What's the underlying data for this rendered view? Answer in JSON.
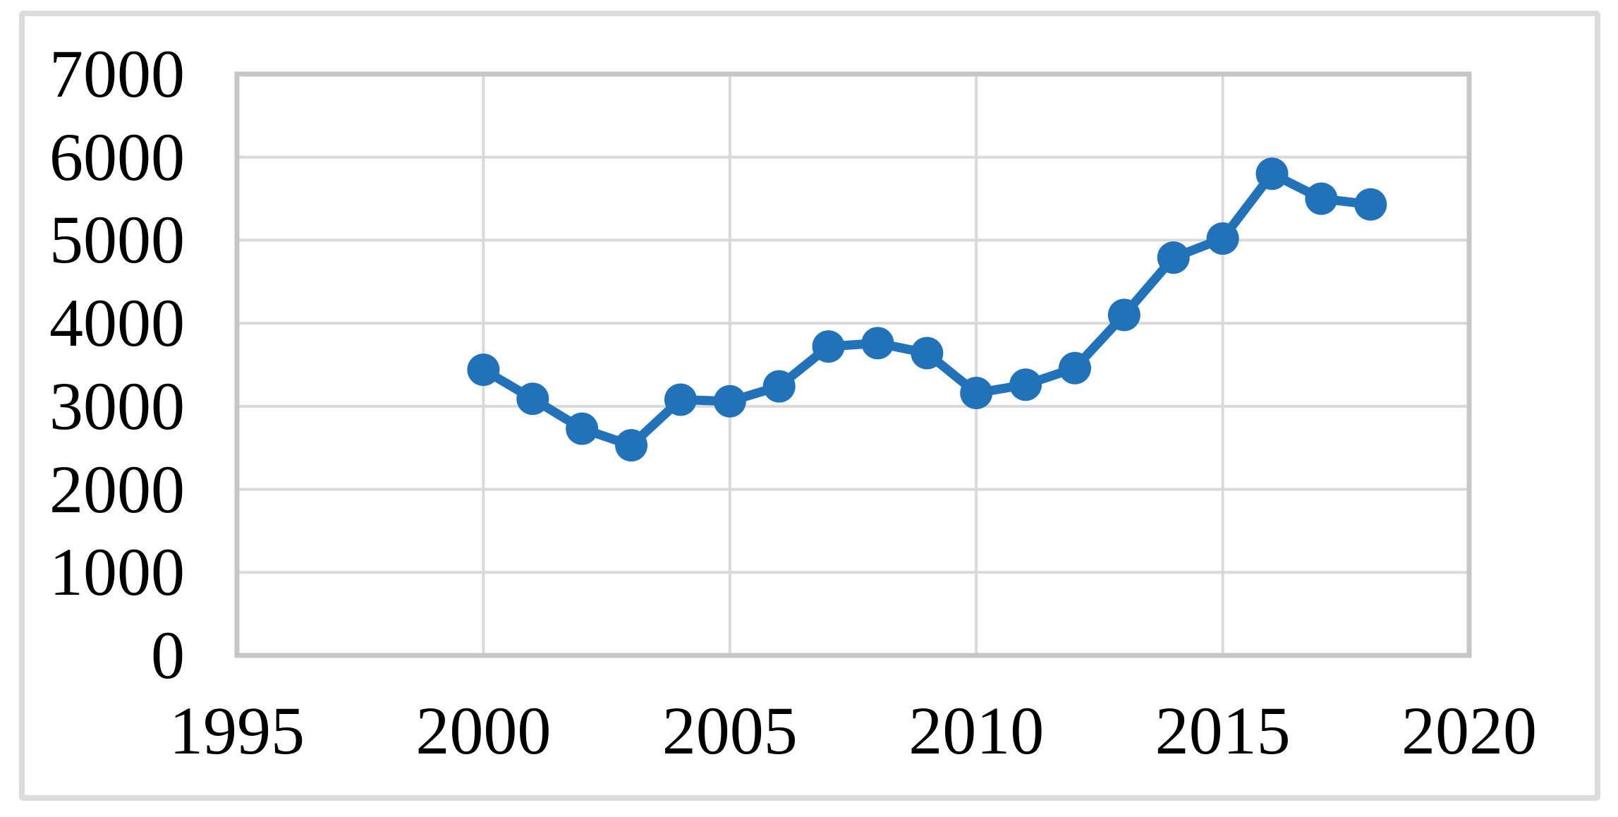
{
  "chart_data": {
    "type": "line",
    "title": "",
    "xlabel": "",
    "ylabel": "",
    "x": [
      2000,
      2001,
      2002,
      2003,
      2004,
      2005,
      2006,
      2007,
      2008,
      2009,
      2010,
      2011,
      2012,
      2013,
      2014,
      2015,
      2016,
      2017,
      2018
    ],
    "values": [
      3440,
      3090,
      2730,
      2530,
      3080,
      3060,
      3240,
      3720,
      3760,
      3640,
      3160,
      3260,
      3460,
      4100,
      4790,
      5020,
      5800,
      5500,
      5430
    ],
    "xlim": [
      1995,
      2020
    ],
    "ylim": [
      0,
      7000
    ],
    "x_tick_step": 5,
    "y_tick_step": 1000,
    "x_tick_labels": [
      "1995",
      "2000",
      "2005",
      "2010",
      "2015",
      "2020"
    ],
    "y_tick_labels": [
      "0",
      "1000",
      "2000",
      "3000",
      "4000",
      "5000",
      "6000",
      "7000"
    ],
    "grid": true,
    "legend_position": "none",
    "marker": "circle",
    "colors": {
      "line": "#2272B9",
      "marker": "#2272B9",
      "gridline": "#D9D9D9",
      "plot_border": "#C6C6C6",
      "figure_border": "#DCDCDC",
      "text": "#000000",
      "background": "#FFFFFF"
    }
  }
}
